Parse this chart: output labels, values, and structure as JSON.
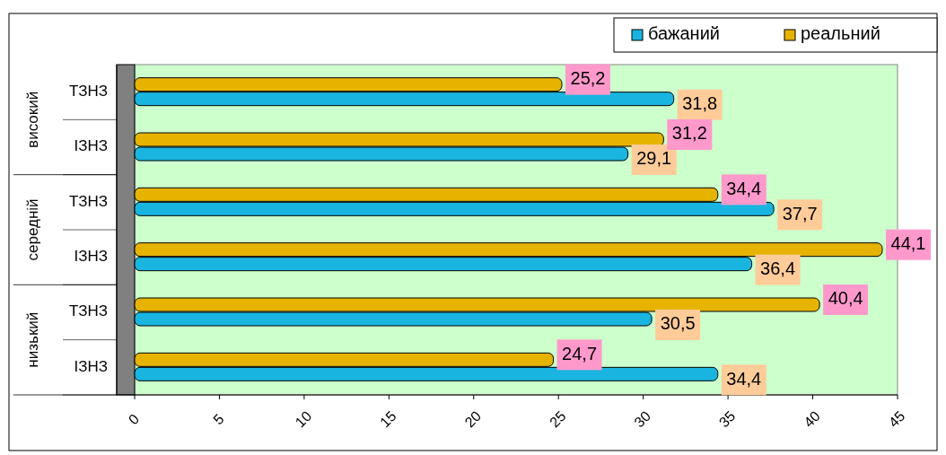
{
  "chart_data": {
    "type": "bar",
    "orientation": "horizontal",
    "categories": [
      "ТЗНЗ",
      "ІЗНЗ",
      "ТЗНЗ",
      "ІЗНЗ",
      "ТЗНЗ",
      "ІЗНЗ"
    ],
    "series": [
      {
        "name": "бажаний",
        "color": "#19b5e0",
        "values": [
          31.8,
          29.1,
          37.7,
          36.4,
          30.5,
          34.4
        ],
        "value_labels": [
          "31,8",
          "29,1",
          "37,7",
          "36,4",
          "30,5",
          "34,4"
        ]
      },
      {
        "name": "реальний",
        "color": "#e6b400",
        "values": [
          25.2,
          31.2,
          34.4,
          44.1,
          40.4,
          24.7
        ],
        "value_labels": [
          "25,2",
          "31,2",
          "34,4",
          "44,1",
          "40,4",
          "24,7"
        ]
      }
    ],
    "annotations": [
      "високий",
      "середній",
      "низький"
    ],
    "xlim": [
      0,
      45
    ],
    "xticks": [
      0,
      5,
      10,
      15,
      20,
      25,
      30,
      35,
      40,
      45
    ],
    "grid": false,
    "legend": "top right"
  }
}
